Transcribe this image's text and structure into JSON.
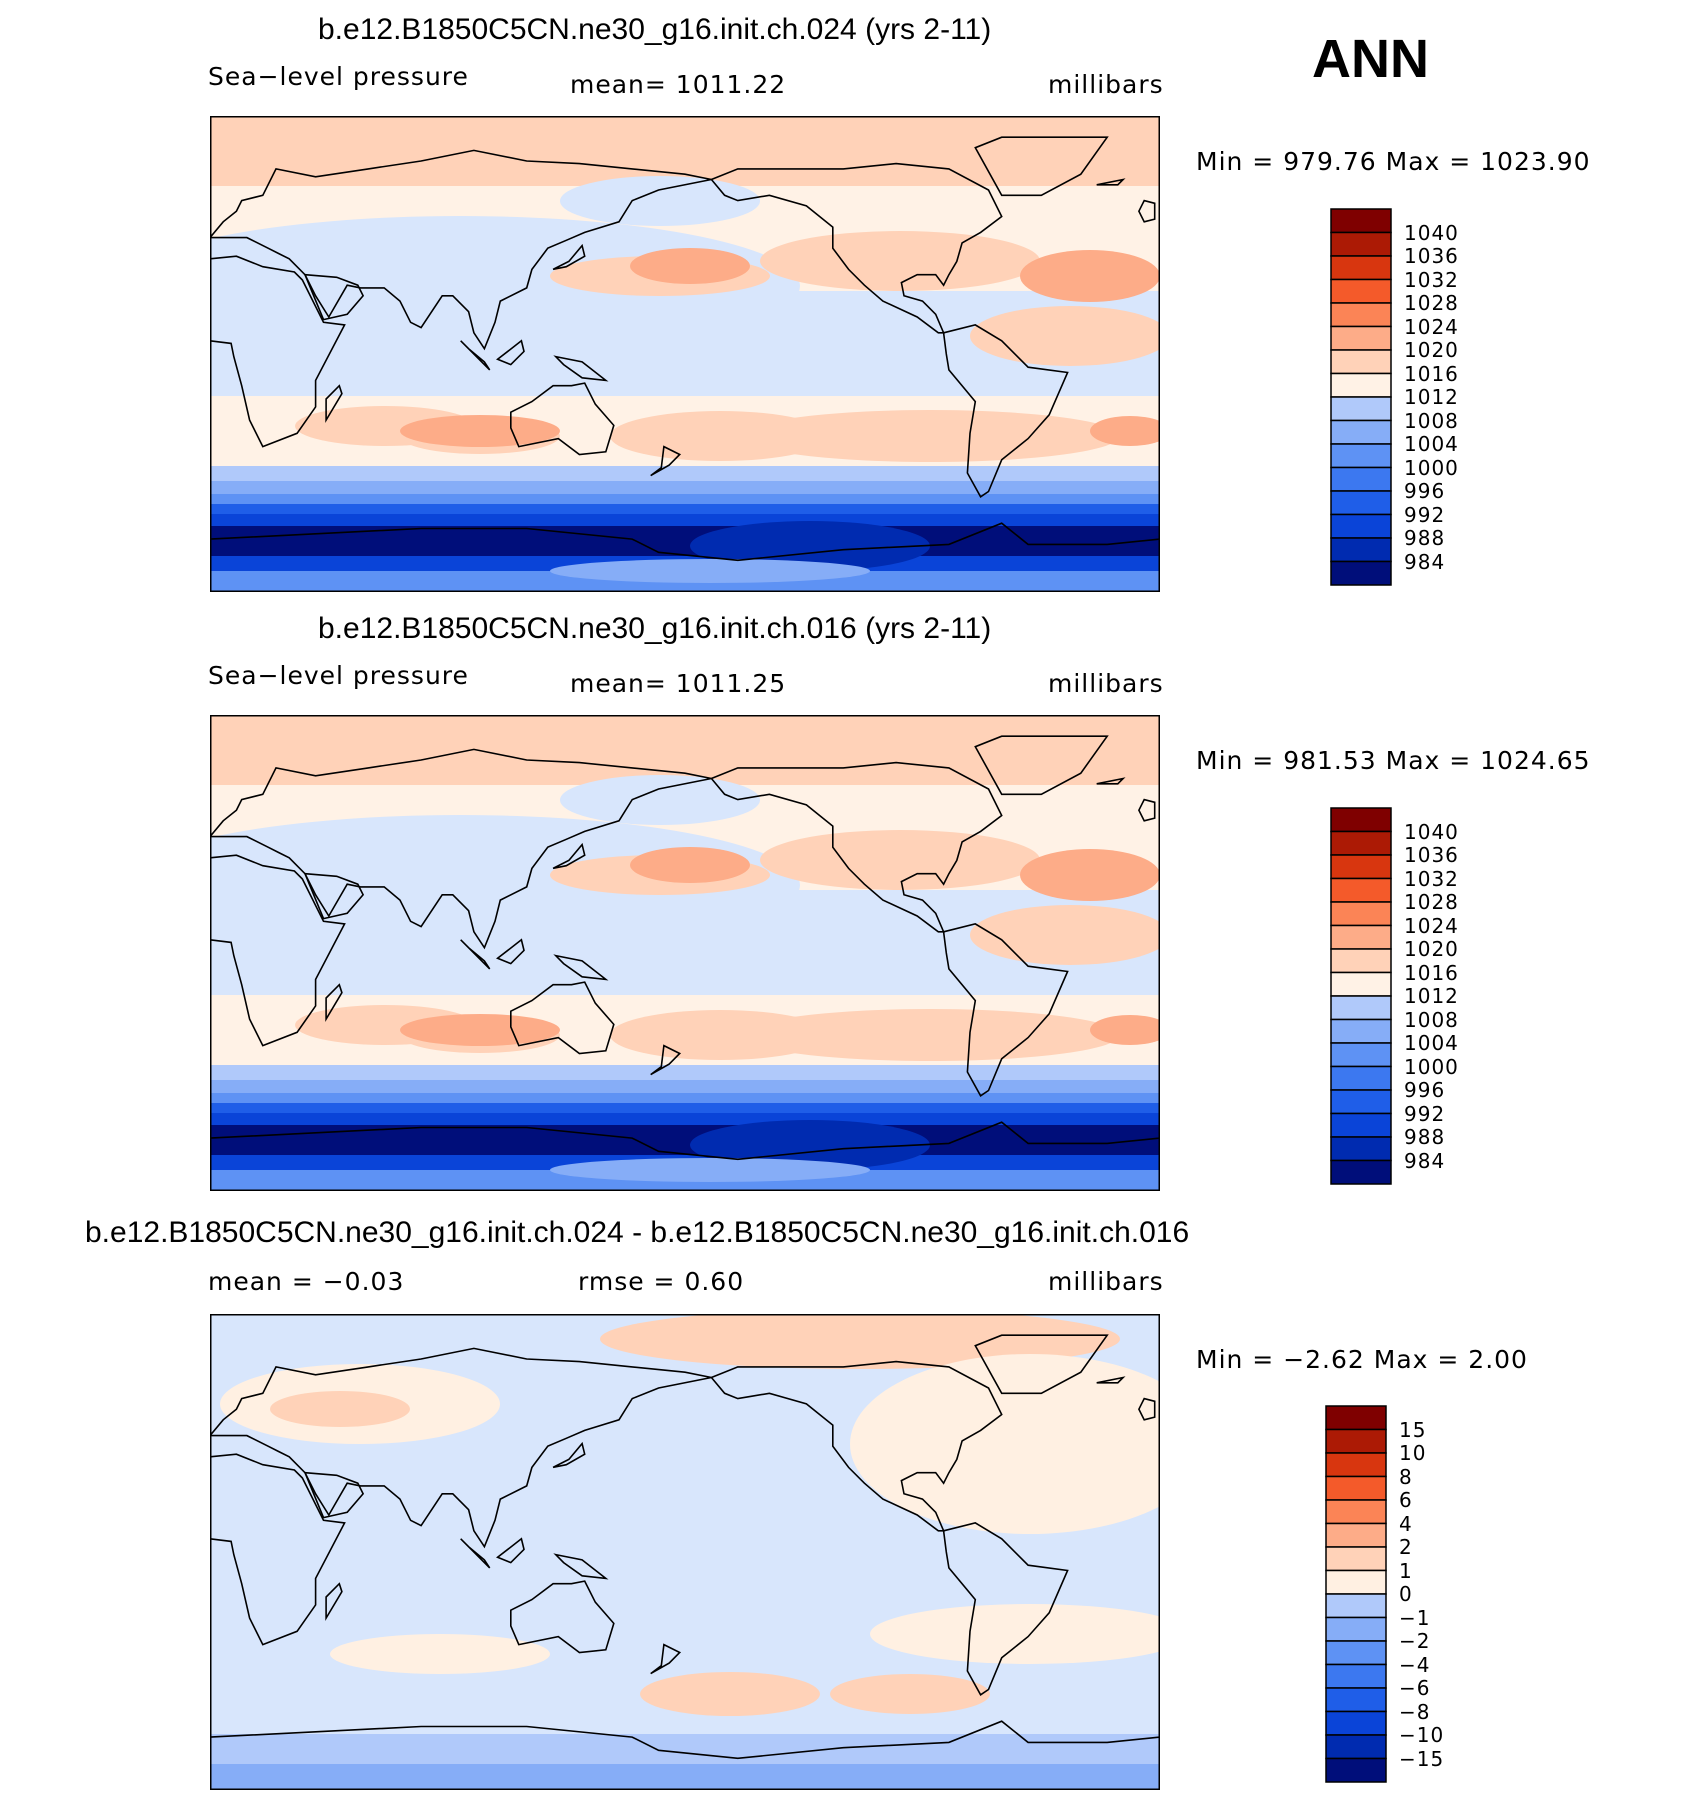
{
  "season": "ANN",
  "palette": {
    "abs": [
      "#000e7a",
      "#002bb0",
      "#0a44d8",
      "#1f5ee8",
      "#3c78f0",
      "#5e92f4",
      "#86adf7",
      "#b0c9fa",
      "#d8e6fc",
      "#fff2e6",
      "#ffd2b8",
      "#fdac88",
      "#fb8456",
      "#f45a2a",
      "#d8360f",
      "#ac1a05",
      "#7f0000"
    ],
    "diff": [
      "#000e7a",
      "#002bb0",
      "#0a44d8",
      "#1f5ee8",
      "#3c78f0",
      "#5e92f4",
      "#86adf7",
      "#b0c9fa",
      "#d8e6fc",
      "#fff0e2",
      "#ffd2b8",
      "#fdac88",
      "#fb8456",
      "#f45a2a",
      "#d8360f",
      "#ac1a05",
      "#7f0000"
    ]
  },
  "panels": [
    {
      "title": "b.e12.B1850C5CN.ne30_g16.init.ch.024 (yrs 2-11)",
      "left_label": "Sea−level pressure",
      "center_label": "mean=  1011.22",
      "right_label": "millibars",
      "minmax": "Min  =  979.76  Max  =  1023.90",
      "colorbar_labels": [
        "1040",
        "1036",
        "1032",
        "1028",
        "1024",
        "1020",
        "1016",
        "1012",
        "1008",
        "1004",
        "1000",
        "996",
        "992",
        "988",
        "984"
      ],
      "field": "abs"
    },
    {
      "title": "b.e12.B1850C5CN.ne30_g16.init.ch.016 (yrs 2-11)",
      "left_label": "Sea−level pressure",
      "center_label": "mean=  1011.25",
      "right_label": "millibars",
      "minmax": "Min  =  981.53  Max  =  1024.65",
      "colorbar_labels": [
        "1040",
        "1036",
        "1032",
        "1028",
        "1024",
        "1020",
        "1016",
        "1012",
        "1008",
        "1004",
        "1000",
        "996",
        "992",
        "988",
        "984"
      ],
      "field": "abs"
    },
    {
      "title": "b.e12.B1850C5CN.ne30_g16.init.ch.024 - b.e12.B1850C5CN.ne30_g16.init.ch.016",
      "left_label": "mean  =    −0.03",
      "center_label": "rmse  =      0.60",
      "right_label": "millibars",
      "minmax": "Min  =    −2.62  Max  =      2.00",
      "colorbar_labels": [
        "15",
        "10",
        "8",
        "6",
        "4",
        "2",
        "1",
        "0",
        "−1",
        "−2",
        "−4",
        "−6",
        "−8",
        "−10",
        "−15"
      ],
      "field": "diff"
    }
  ]
}
